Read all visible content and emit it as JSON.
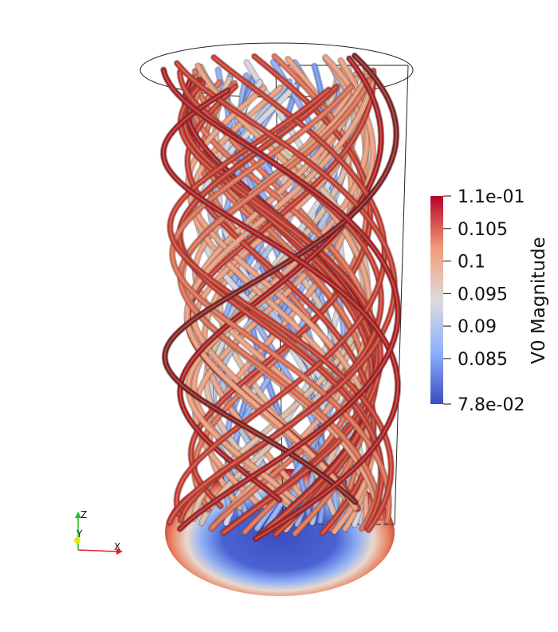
{
  "colorbar": {
    "title": "V0 Magnitude",
    "ticks": [
      {
        "label": "1.1e-01",
        "value": 0.11
      },
      {
        "label": "0.105",
        "value": 0.105
      },
      {
        "label": "0.1",
        "value": 0.1
      },
      {
        "label": "0.095",
        "value": 0.095
      },
      {
        "label": "0.09",
        "value": 0.09
      },
      {
        "label": "0.085",
        "value": 0.085
      },
      {
        "label": "7.8e-02",
        "value": 0.078
      }
    ],
    "min": 0.078,
    "max": 0.11,
    "colors": [
      "#3b4cc0",
      "#8db0fe",
      "#dddcdc",
      "#f49a7b",
      "#b40426"
    ]
  },
  "axes_triad": {
    "x": "X",
    "y": "Y",
    "z": "Z"
  }
}
